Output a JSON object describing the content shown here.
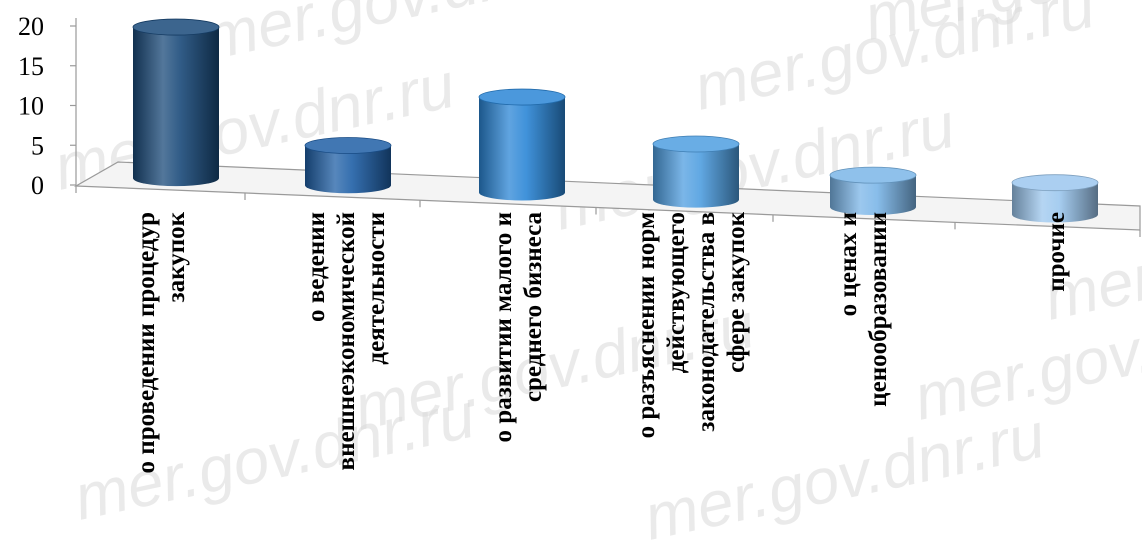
{
  "watermark": "mer.gov.dnr.ru",
  "chart_data": {
    "type": "bar",
    "style": "3d-cylinder",
    "title": "",
    "xlabel": "",
    "ylabel": "",
    "ylim": [
      0,
      20
    ],
    "yticks": [
      "0",
      "5",
      "10",
      "15",
      "20"
    ],
    "grid": false,
    "legend": "none",
    "categories": [
      [
        "о проведении процедур",
        "закупок"
      ],
      [
        "о ведении",
        "внешнеэкономической",
        "деятельности"
      ],
      [
        "о развитии малого и",
        "среднего бизнеса"
      ],
      [
        "о разъяснении норм",
        "действующего",
        "законодательства в",
        "сфере закупок"
      ],
      [
        "о ценах и",
        "ценообразовании"
      ],
      [
        "прочие"
      ]
    ],
    "values": [
      19,
      5,
      12,
      7,
      4,
      4
    ],
    "colors": [
      "#1a4a7a",
      "#1f5fa6",
      "#2b86d6",
      "#4f9ee0",
      "#7bb6e8",
      "#9cc7ee"
    ]
  }
}
